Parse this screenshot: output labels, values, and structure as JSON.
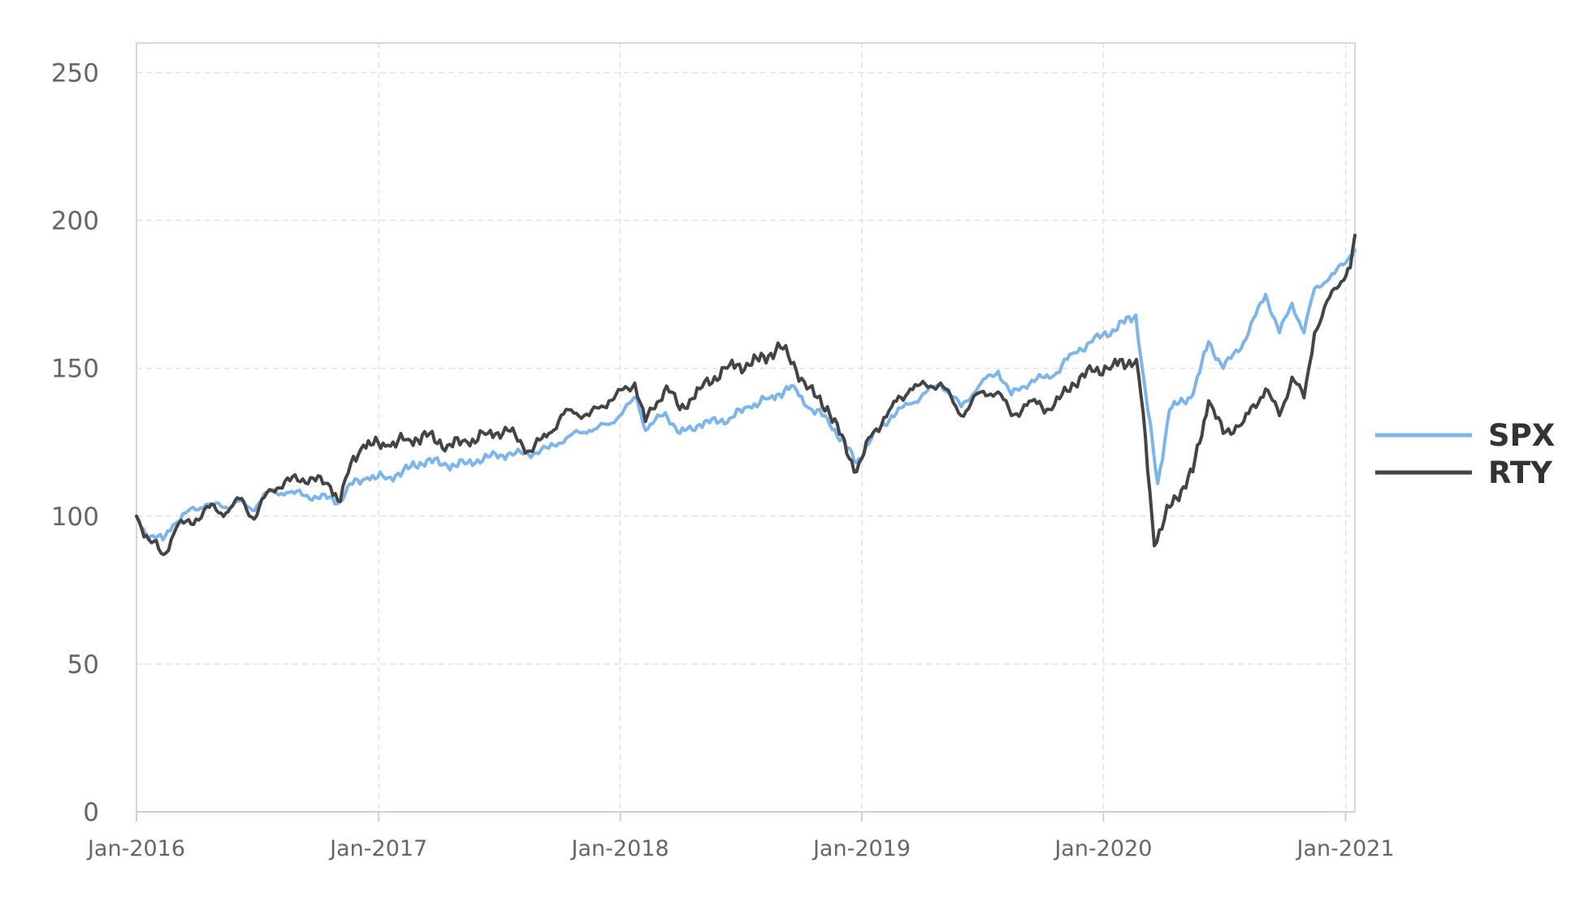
{
  "chart_data": {
    "type": "line",
    "title": "",
    "xlabel": "",
    "ylabel": "",
    "x_ticks": [
      "Jan-2016",
      "Jan-2017",
      "Jan-2018",
      "Jan-2019",
      "Jan-2020",
      "Jan-2021"
    ],
    "x_range": [
      "2016-01-01",
      "2021-01-15"
    ],
    "y_ticks": [
      "0",
      "50",
      "100",
      "150",
      "200",
      "250"
    ],
    "ylim": [
      0,
      260
    ],
    "grid": true,
    "legend_position": "right",
    "series": [
      {
        "name": "SPX",
        "color": "#7cb5ec",
        "points": [
          [
            "2016-01-01",
            100
          ],
          [
            "2016-01-15",
            94
          ],
          [
            "2016-02-10",
            92
          ],
          [
            "2016-02-25",
            97
          ],
          [
            "2016-03-15",
            101
          ],
          [
            "2016-04-15",
            104
          ],
          [
            "2016-05-15",
            103
          ],
          [
            "2016-06-01",
            105
          ],
          [
            "2016-06-24",
            102
          ],
          [
            "2016-07-15",
            108
          ],
          [
            "2016-08-15",
            108
          ],
          [
            "2016-09-15",
            107
          ],
          [
            "2016-10-15",
            106
          ],
          [
            "2016-11-04",
            105
          ],
          [
            "2016-11-15",
            110
          ],
          [
            "2016-12-15",
            113
          ],
          [
            "2017-01-15",
            113
          ],
          [
            "2017-02-15",
            116
          ],
          [
            "2017-03-15",
            119
          ],
          [
            "2017-04-15",
            117
          ],
          [
            "2017-05-15",
            118
          ],
          [
            "2017-06-15",
            120
          ],
          [
            "2017-07-15",
            121
          ],
          [
            "2017-08-15",
            121
          ],
          [
            "2017-09-15",
            123
          ],
          [
            "2017-10-15",
            127
          ],
          [
            "2017-11-15",
            129
          ],
          [
            "2017-12-15",
            131
          ],
          [
            "2018-01-26",
            140
          ],
          [
            "2018-02-08",
            129
          ],
          [
            "2018-03-10",
            135
          ],
          [
            "2018-04-01",
            128
          ],
          [
            "2018-05-01",
            131
          ],
          [
            "2018-06-15",
            133
          ],
          [
            "2018-07-15",
            137
          ],
          [
            "2018-08-15",
            140
          ],
          [
            "2018-09-20",
            144
          ],
          [
            "2018-10-10",
            137
          ],
          [
            "2018-11-10",
            133
          ],
          [
            "2018-12-24",
            118
          ],
          [
            "2019-01-15",
            126
          ],
          [
            "2019-02-15",
            134
          ],
          [
            "2019-03-15",
            138
          ],
          [
            "2019-04-30",
            145
          ],
          [
            "2019-05-31",
            137
          ],
          [
            "2019-06-30",
            145
          ],
          [
            "2019-07-26",
            149
          ],
          [
            "2019-08-15",
            141
          ],
          [
            "2019-09-15",
            146
          ],
          [
            "2019-10-15",
            147
          ],
          [
            "2019-11-15",
            155
          ],
          [
            "2019-12-15",
            159
          ],
          [
            "2020-01-15",
            163
          ],
          [
            "2020-02-19",
            168
          ],
          [
            "2020-03-01",
            148
          ],
          [
            "2020-03-23",
            111
          ],
          [
            "2020-04-10",
            136
          ],
          [
            "2020-05-15",
            141
          ],
          [
            "2020-06-08",
            159
          ],
          [
            "2020-06-30",
            150
          ],
          [
            "2020-07-31",
            159
          ],
          [
            "2020-09-02",
            175
          ],
          [
            "2020-09-23",
            162
          ],
          [
            "2020-10-12",
            172
          ],
          [
            "2020-10-30",
            162
          ],
          [
            "2020-11-15",
            177
          ],
          [
            "2020-12-15",
            182
          ],
          [
            "2021-01-08",
            188
          ],
          [
            "2021-01-15",
            190
          ]
        ]
      },
      {
        "name": "RTY",
        "color": "#434348",
        "points": [
          [
            "2016-01-01",
            100
          ],
          [
            "2016-01-20",
            92
          ],
          [
            "2016-02-11",
            87
          ],
          [
            "2016-03-01",
            96
          ],
          [
            "2016-03-31",
            99
          ],
          [
            "2016-04-20",
            103
          ],
          [
            "2016-05-15",
            101
          ],
          [
            "2016-06-08",
            106
          ],
          [
            "2016-06-27",
            99
          ],
          [
            "2016-07-20",
            109
          ],
          [
            "2016-08-20",
            112
          ],
          [
            "2016-09-20",
            113
          ],
          [
            "2016-10-20",
            110
          ],
          [
            "2016-11-04",
            105
          ],
          [
            "2016-11-20",
            118
          ],
          [
            "2016-12-09",
            124
          ],
          [
            "2017-01-15",
            124
          ],
          [
            "2017-02-15",
            126
          ],
          [
            "2017-03-15",
            127
          ],
          [
            "2017-04-15",
            124
          ],
          [
            "2017-05-15",
            125
          ],
          [
            "2017-06-15",
            128
          ],
          [
            "2017-07-15",
            129
          ],
          [
            "2017-08-18",
            122
          ],
          [
            "2017-09-15",
            128
          ],
          [
            "2017-10-15",
            136
          ],
          [
            "2017-11-15",
            134
          ],
          [
            "2017-12-15",
            139
          ],
          [
            "2018-01-23",
            145
          ],
          [
            "2018-02-08",
            132
          ],
          [
            "2018-03-12",
            144
          ],
          [
            "2018-04-01",
            136
          ],
          [
            "2018-05-01",
            143
          ],
          [
            "2018-06-15",
            151
          ],
          [
            "2018-07-15",
            151
          ],
          [
            "2018-08-31",
            157
          ],
          [
            "2018-09-20",
            152
          ],
          [
            "2018-10-10",
            143
          ],
          [
            "2018-11-10",
            137
          ],
          [
            "2018-12-24",
            115
          ],
          [
            "2019-01-15",
            127
          ],
          [
            "2019-02-15",
            137
          ],
          [
            "2019-03-15",
            143
          ],
          [
            "2019-04-30",
            145
          ],
          [
            "2019-05-31",
            134
          ],
          [
            "2019-06-30",
            142
          ],
          [
            "2019-07-26",
            142
          ],
          [
            "2019-08-15",
            134
          ],
          [
            "2019-09-15",
            139
          ],
          [
            "2019-10-15",
            136
          ],
          [
            "2019-11-15",
            145
          ],
          [
            "2019-12-15",
            149
          ],
          [
            "2020-01-15",
            151
          ],
          [
            "2020-02-20",
            153
          ],
          [
            "2020-03-01",
            135
          ],
          [
            "2020-03-18",
            90
          ],
          [
            "2020-04-10",
            103
          ],
          [
            "2020-05-15",
            115
          ],
          [
            "2020-06-08",
            139
          ],
          [
            "2020-06-30",
            128
          ],
          [
            "2020-07-31",
            132
          ],
          [
            "2020-09-02",
            143
          ],
          [
            "2020-09-23",
            134
          ],
          [
            "2020-10-12",
            147
          ],
          [
            "2020-10-30",
            140
          ],
          [
            "2020-11-15",
            162
          ],
          [
            "2020-12-15",
            177
          ],
          [
            "2021-01-08",
            184
          ],
          [
            "2021-01-15",
            195
          ]
        ]
      }
    ]
  }
}
